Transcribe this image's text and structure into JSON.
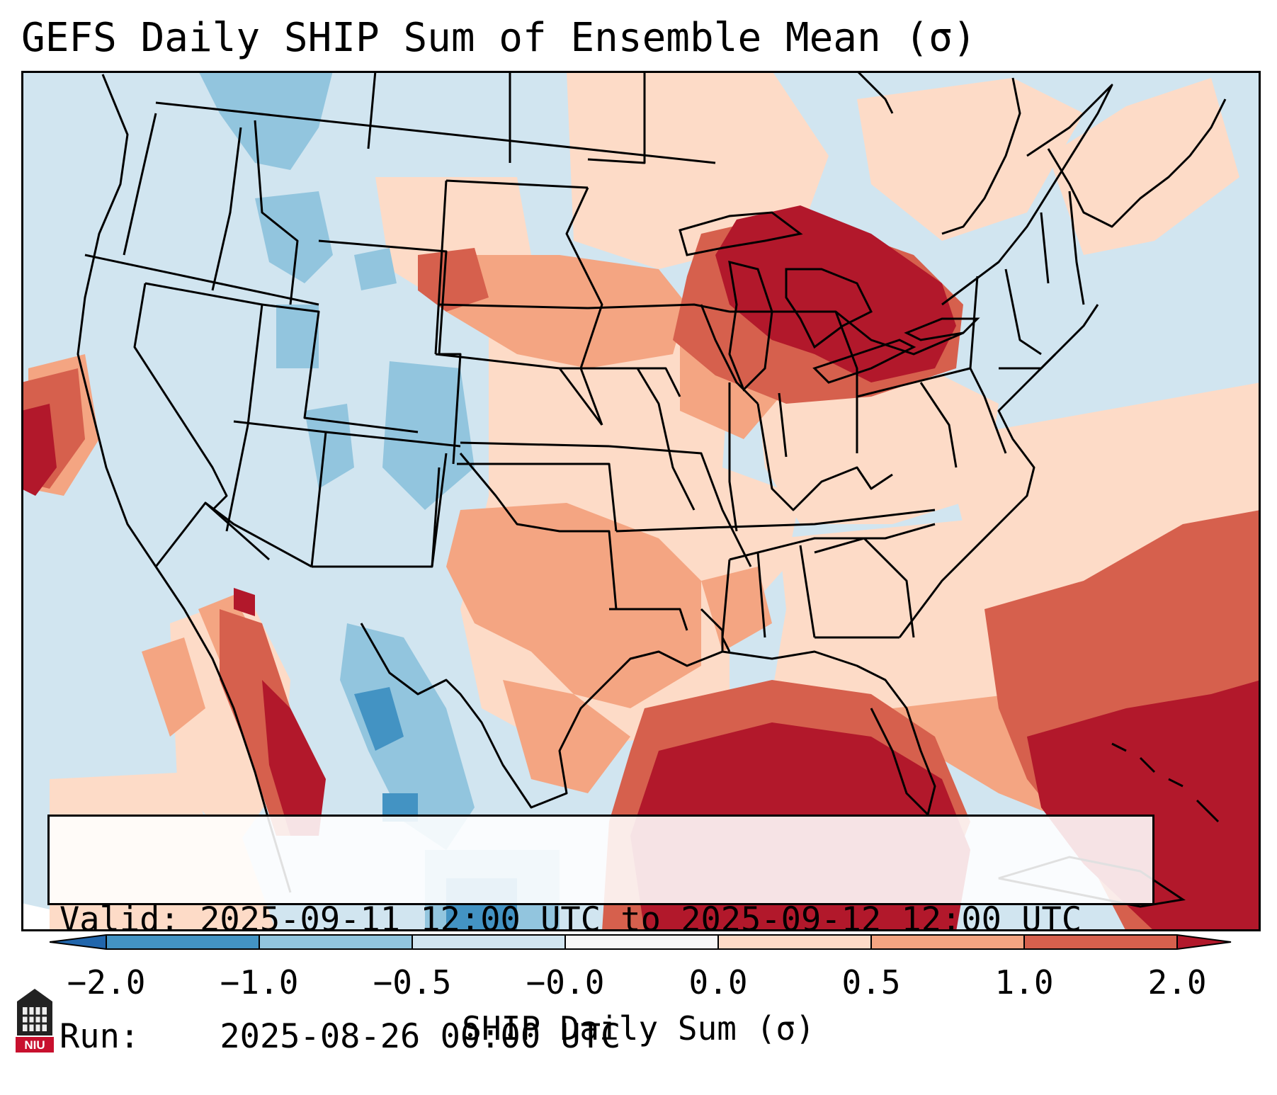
{
  "title": "GEFS Daily SHIP Sum of Ensemble Mean (σ)",
  "info": {
    "valid_label": "Valid:",
    "valid_value": "2025-09-11 12:00 UTC to 2025-09-12 12:00 UTC",
    "run_label": "Run:",
    "run_value": "2025-08-26 00:00 UTC"
  },
  "colorbar": {
    "label": "SHIP Daily Sum (σ)",
    "ticks": [
      "−2.0",
      "−1.0",
      "−0.5",
      "−0.0",
      "0.0",
      "0.5",
      "1.0",
      "2.0"
    ],
    "bins": [
      {
        "range": "≤ -2.0",
        "color": "#2166ac"
      },
      {
        "range": "-2.0 to -1.0",
        "color": "#4393c3"
      },
      {
        "range": "-1.0 to -0.5",
        "color": "#92c5de"
      },
      {
        "range": "-0.5 to -0.0",
        "color": "#d1e5f0"
      },
      {
        "range": "-0.0 to 0.0",
        "color": "#f7f7f7"
      },
      {
        "range": "0.0 to 0.5",
        "color": "#fddbc7"
      },
      {
        "range": "0.5 to 1.0",
        "color": "#f4a582"
      },
      {
        "range": "1.0 to 2.0",
        "color": "#d6604d"
      },
      {
        "range": "≥ 2.0",
        "color": "#b2182b"
      }
    ]
  },
  "logo": {
    "text": "NIU",
    "color": "#c8102e"
  }
}
